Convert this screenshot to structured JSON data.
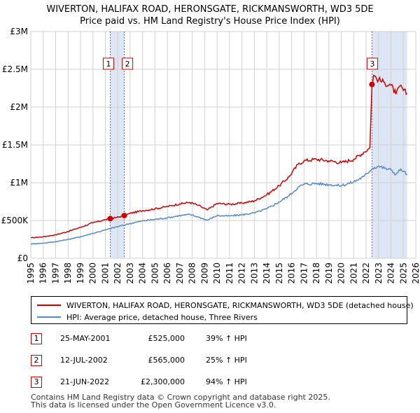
{
  "header": {
    "title_line1": "WIVERTON, HALIFAX ROAD, HERONSGATE, RICKMANSWORTH, WD3 5DE",
    "title_line2": "Price paid vs. HM Land Registry's House Price Index (HPI)"
  },
  "colors": {
    "property": "#cc0000",
    "hpi": "#5588cc",
    "band": "#dde6f5",
    "vline": "#dd3333",
    "grid": "#d0d0d0"
  },
  "chart_data": {
    "type": "line",
    "title": "Price paid vs. HM Land Registry's House Price Index (HPI)",
    "xlabel": "",
    "ylabel": "",
    "xlim": [
      1995,
      2026
    ],
    "ylim": [
      0,
      3000000
    ],
    "y_ticks": [
      {
        "value": 0,
        "label": "£0"
      },
      {
        "value": 500000,
        "label": "£500K"
      },
      {
        "value": 1000000,
        "label": "£1M"
      },
      {
        "value": 1500000,
        "label": "£1.5M"
      },
      {
        "value": 2000000,
        "label": "£2M"
      },
      {
        "value": 2500000,
        "label": "£2.5M"
      },
      {
        "value": 3000000,
        "label": "£3M"
      }
    ],
    "x_ticks": [
      1995,
      1996,
      1997,
      1998,
      1999,
      2000,
      2001,
      2002,
      2003,
      2004,
      2005,
      2006,
      2007,
      2008,
      2009,
      2010,
      2011,
      2012,
      2013,
      2014,
      2015,
      2016,
      2017,
      2018,
      2019,
      2020,
      2021,
      2022,
      2023,
      2024,
      2025,
      2026
    ],
    "grid": true,
    "series": [
      {
        "name": "WIVERTON, HALIFAX ROAD, HERONSGATE, RICKMANSWORTH, WD3 5DE (detached house)",
        "key": "property",
        "x": [
          1995.0,
          1996.0,
          1997.0,
          1998.0,
          1999.0,
          2000.0,
          2001.0,
          2001.4,
          2001.9,
          2002.53,
          2003.0,
          2004.0,
          2005.0,
          2006.0,
          2007.0,
          2007.8,
          2008.5,
          2009.2,
          2010.0,
          2011.0,
          2012.0,
          2013.0,
          2014.0,
          2015.0,
          2015.8,
          2016.5,
          2017.0,
          2018.0,
          2019.0,
          2020.0,
          2021.0,
          2021.8,
          2022.3,
          2022.47,
          2022.6,
          2023.0,
          2023.5,
          2024.0,
          2024.4,
          2024.8,
          2025.0,
          2025.3
        ],
        "values": [
          270000,
          285000,
          310000,
          355000,
          410000,
          470000,
          510000,
          525000,
          540000,
          565000,
          595000,
          630000,
          655000,
          685000,
          720000,
          740000,
          700000,
          640000,
          725000,
          715000,
          730000,
          760000,
          840000,
          960000,
          1080000,
          1240000,
          1290000,
          1310000,
          1290000,
          1265000,
          1310000,
          1400000,
          1460000,
          2300000,
          2420000,
          2360000,
          2320000,
          2290000,
          2170000,
          2290000,
          2220000,
          2180000
        ]
      },
      {
        "name": "HPI: Average price, detached house, Three Rivers",
        "key": "hpi",
        "x": [
          1995.0,
          1996.0,
          1997.0,
          1998.0,
          1999.0,
          2000.0,
          2001.0,
          2002.0,
          2003.0,
          2004.0,
          2005.0,
          2006.0,
          2007.0,
          2007.8,
          2008.5,
          2009.2,
          2010.0,
          2011.0,
          2012.0,
          2013.0,
          2014.0,
          2015.0,
          2015.8,
          2016.5,
          2017.0,
          2018.0,
          2019.0,
          2020.0,
          2021.0,
          2021.8,
          2022.5,
          2023.0,
          2023.5,
          2024.0,
          2024.4,
          2024.8,
          2025.0,
          2025.3
        ],
        "values": [
          190000,
          200000,
          220000,
          250000,
          285000,
          330000,
          375000,
          420000,
          460000,
          495000,
          515000,
          535000,
          565000,
          580000,
          545000,
          505000,
          565000,
          560000,
          575000,
          600000,
          655000,
          745000,
          830000,
          935000,
          980000,
          990000,
          975000,
          960000,
          1010000,
          1080000,
          1190000,
          1220000,
          1190000,
          1170000,
          1110000,
          1180000,
          1150000,
          1110000
        ]
      }
    ],
    "sale_markers": [
      {
        "label": "1",
        "x": 2001.4,
        "y": 525000
      },
      {
        "label": "2",
        "x": 2002.53,
        "y": 565000
      },
      {
        "label": "3",
        "x": 2022.47,
        "y": 2300000
      }
    ],
    "shaded_bands": [
      [
        2001.4,
        2002.53
      ],
      [
        2022.47,
        2025.3
      ]
    ]
  },
  "legend": {
    "property_label": "WIVERTON, HALIFAX ROAD, HERONSGATE, RICKMANSWORTH, WD3 5DE (detached house)",
    "hpi_label": "HPI: Average price, detached house, Three Rivers"
  },
  "sales": [
    {
      "num": "1",
      "date": "25-MAY-2001",
      "price": "£525,000",
      "hpi": "39% ↑ HPI"
    },
    {
      "num": "2",
      "date": "12-JUL-2002",
      "price": "£565,000",
      "hpi": "25% ↑ HPI"
    },
    {
      "num": "3",
      "date": "21-JUN-2022",
      "price": "£2,300,000",
      "hpi": "94% ↑ HPI"
    }
  ],
  "footer": {
    "line1": "Contains HM Land Registry data © Crown copyright and database right 2025.",
    "line2": "This data is licensed under the Open Government Licence v3.0."
  }
}
